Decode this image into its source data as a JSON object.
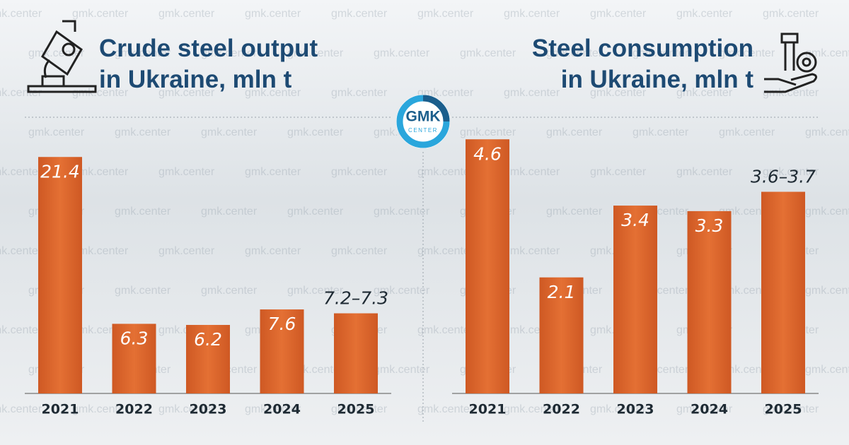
{
  "chart_data": [
    {
      "type": "bar",
      "title": [
        "Crude steel output",
        "in Ukraine, mln t"
      ],
      "categories": [
        "2021",
        "2022",
        "2023",
        "2024",
        "2025"
      ],
      "values": [
        21.4,
        6.3,
        6.2,
        7.6,
        7.25
      ],
      "value_labels": [
        "21.4",
        "6.3",
        "6.2",
        "7.6",
        "7.2–7.3"
      ],
      "color": "#d8612a",
      "ylim": [
        0,
        25
      ]
    },
    {
      "type": "bar",
      "title": [
        "Steel consumption",
        "in Ukraine, mln t"
      ],
      "categories": [
        "2021",
        "2022",
        "2023",
        "2024",
        "2025"
      ],
      "values": [
        4.6,
        2.1,
        3.4,
        3.3,
        3.65
      ],
      "value_labels": [
        "4.6",
        "2.1",
        "3.4",
        "3.3",
        "3.6–3.7"
      ],
      "color": "#d8612a",
      "ylim": [
        0,
        5
      ]
    }
  ],
  "logo": {
    "top": "GMK",
    "bottom": "CENTER"
  },
  "watermark": "gmk.center"
}
